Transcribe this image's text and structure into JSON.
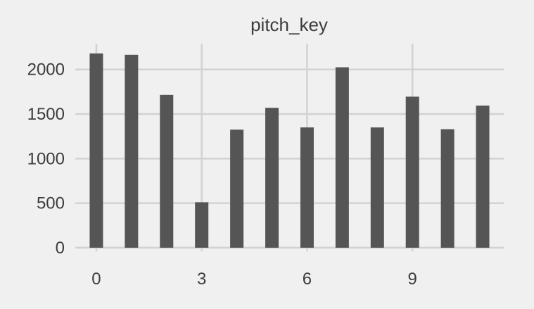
{
  "chart_data": {
    "type": "bar",
    "title": "pitch_key",
    "xlabel": "",
    "ylabel": "",
    "x": [
      0,
      1,
      2,
      3,
      4,
      5,
      6,
      7,
      8,
      9,
      10,
      11
    ],
    "values": [
      2180,
      2165,
      1715,
      510,
      1325,
      1570,
      1350,
      2025,
      1350,
      1695,
      1330,
      1595
    ],
    "xlim": [
      -0.6,
      11.6
    ],
    "ylim": [
      -40,
      2290
    ],
    "x_ticks": [
      0,
      3,
      6,
      9
    ],
    "y_ticks": [
      0,
      500,
      1000,
      1500,
      2000
    ],
    "grid": true,
    "legend": "none",
    "colors": {
      "bar": "#555555",
      "background": "#f0f0f0",
      "grid": "#d2d2d2",
      "text": "#3c3c3c"
    }
  }
}
